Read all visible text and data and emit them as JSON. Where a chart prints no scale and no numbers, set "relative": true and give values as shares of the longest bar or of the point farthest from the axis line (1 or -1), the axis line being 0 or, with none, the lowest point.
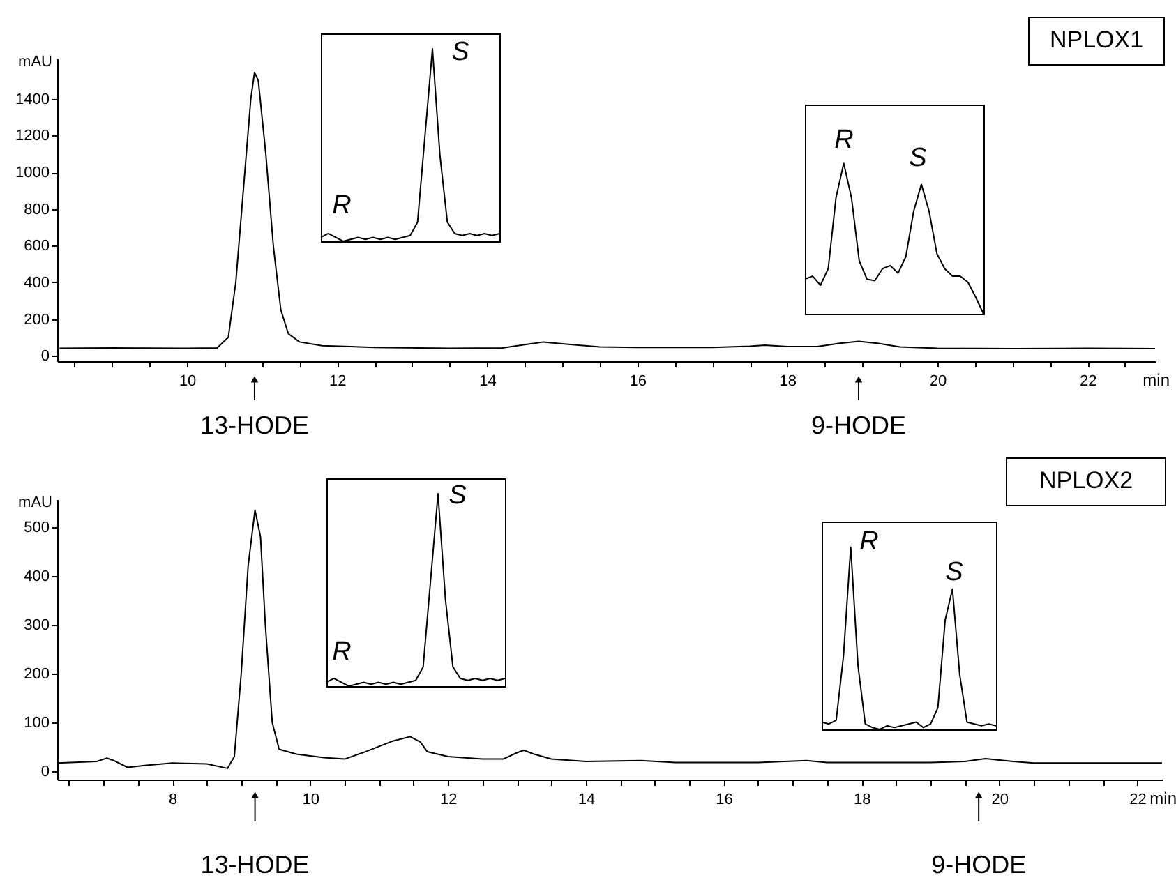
{
  "chart_data": [
    {
      "type": "line",
      "title": "NPLOX1",
      "xlabel": "min",
      "ylabel": "mAU",
      "xlim": [
        8.27,
        22.9
      ],
      "ylim": [
        -30,
        1620
      ],
      "xticks": [
        {
          "value": 8.5,
          "label": null
        },
        {
          "value": 9,
          "label": null
        },
        {
          "value": 9.5,
          "label": null
        },
        10,
        {
          "value": 10.5,
          "label": null
        },
        {
          "value": 11,
          "label": null
        },
        {
          "value": 11.5,
          "label": null
        },
        12,
        {
          "value": 12.5,
          "label": null
        },
        {
          "value": 13,
          "label": null
        },
        {
          "value": 13.5,
          "label": null
        },
        14,
        {
          "value": 14.5,
          "label": null
        },
        {
          "value": 15,
          "label": null
        },
        {
          "value": 15.5,
          "label": null
        },
        16,
        {
          "value": 16.5,
          "label": null
        },
        {
          "value": 17,
          "label": null
        },
        {
          "value": 17.5,
          "label": null
        },
        18,
        {
          "value": 18.5,
          "label": null
        },
        {
          "value": 19,
          "label": null
        },
        {
          "value": 19.5,
          "label": null
        },
        20,
        {
          "value": 20.5,
          "label": null
        },
        {
          "value": 21,
          "label": null
        },
        {
          "value": 21.5,
          "label": null
        },
        22,
        {
          "value": 22.5,
          "label": null
        }
      ],
      "yticks": [
        0,
        200,
        400,
        600,
        800,
        1000,
        1200,
        1400
      ],
      "x": [
        8.3,
        9,
        10,
        10.4,
        10.55,
        10.65,
        10.75,
        10.85,
        10.9,
        10.95,
        11.05,
        11.15,
        11.25,
        11.35,
        11.5,
        11.8,
        12.5,
        13.5,
        14.2,
        14.5,
        14.75,
        15,
        15.5,
        16,
        17,
        17.5,
        17.7,
        18,
        18.4,
        18.7,
        18.95,
        19.2,
        19.5,
        20,
        21,
        22,
        22.9
      ],
      "series": [
        {
          "color": "#000000",
          "values": [
            40,
            42,
            40,
            42,
            100,
            400,
            900,
            1400,
            1545,
            1500,
            1100,
            600,
            250,
            120,
            75,
            55,
            45,
            40,
            42,
            60,
            75,
            65,
            48,
            45,
            45,
            52,
            57,
            50,
            50,
            68,
            78,
            68,
            48,
            40,
            38,
            40,
            38
          ]
        }
      ],
      "annotations": [
        {
          "text": "13-HODE",
          "x": 10.9
        },
        {
          "text": "9-HODE",
          "x": 18.95
        }
      ]
    },
    {
      "type": "line",
      "relative": true,
      "categories": [
        null,
        null,
        null,
        null,
        null,
        null,
        null,
        null,
        null,
        null,
        null,
        null,
        null,
        null,
        null,
        null,
        null,
        null,
        null,
        null,
        null,
        null,
        null,
        null,
        null
      ],
      "series": [
        {
          "color": "#000000",
          "values": [
            0.02,
            0.04,
            0.02,
            0,
            0.01,
            0.02,
            0.01,
            0.02,
            0.01,
            0.02,
            0.01,
            0.02,
            0.03,
            0.1,
            0.55,
            1.0,
            0.45,
            0.1,
            0.04,
            0.03,
            0.04,
            0.03,
            0.04,
            0.03,
            0.04
          ]
        }
      ],
      "annotations": [
        "R",
        "S"
      ]
    },
    {
      "type": "line",
      "relative": true,
      "categories": [
        null,
        null,
        null,
        null,
        null,
        null,
        null,
        null,
        null,
        null,
        null,
        null,
        null,
        null,
        null,
        null,
        null,
        null,
        null,
        null,
        null,
        null,
        null,
        null
      ],
      "series": [
        {
          "color": "#000000",
          "values": [
            0.23,
            0.25,
            0.19,
            0.3,
            0.77,
            1.0,
            0.77,
            0.35,
            0.23,
            0.22,
            0.3,
            0.32,
            0.27,
            0.38,
            0.68,
            0.86,
            0.68,
            0.4,
            0.3,
            0.25,
            0.25,
            0.21,
            0.11,
            0
          ]
        }
      ],
      "annotations": [
        "R",
        "S"
      ]
    },
    {
      "type": "line",
      "title": "NPLOX2",
      "xlabel": "min",
      "ylabel": "mAU",
      "xlim": [
        6.33,
        22.36
      ],
      "ylim": [
        -17,
        557
      ],
      "xticks": [
        {
          "value": 6.5,
          "label": null
        },
        {
          "value": 7,
          "label": null
        },
        {
          "value": 7.5,
          "label": null
        },
        8,
        {
          "value": 8.5,
          "label": null
        },
        {
          "value": 9,
          "label": null
        },
        {
          "value": 9.5,
          "label": null
        },
        10,
        {
          "value": 10.5,
          "label": null
        },
        {
          "value": 11,
          "label": null
        },
        {
          "value": 11.5,
          "label": null
        },
        12,
        {
          "value": 12.5,
          "label": null
        },
        {
          "value": 13,
          "label": null
        },
        {
          "value": 13.5,
          "label": null
        },
        14,
        {
          "value": 14.5,
          "label": null
        },
        {
          "value": 15,
          "label": null
        },
        {
          "value": 15.5,
          "label": null
        },
        16,
        {
          "value": 16.5,
          "label": null
        },
        {
          "value": 17,
          "label": null
        },
        {
          "value": 17.5,
          "label": null
        },
        18,
        {
          "value": 18.5,
          "label": null
        },
        {
          "value": 19,
          "label": null
        },
        {
          "value": 19.5,
          "label": null
        },
        20,
        {
          "value": 20.5,
          "label": null
        },
        {
          "value": 21,
          "label": null
        },
        {
          "value": 21.5,
          "label": null
        },
        22
      ],
      "yticks": [
        0,
        100,
        200,
        300,
        400,
        500
      ],
      "x": [
        6.33,
        6.9,
        7.05,
        7.15,
        7.35,
        7.6,
        8,
        8.5,
        8.8,
        8.9,
        9.0,
        9.1,
        9.2,
        9.28,
        9.35,
        9.45,
        9.55,
        9.8,
        10.2,
        10.5,
        10.8,
        11.2,
        11.45,
        11.6,
        11.7,
        12,
        12.5,
        12.8,
        13.0,
        13.1,
        13.25,
        13.5,
        14,
        14.8,
        15.3,
        16.5,
        17.2,
        17.5,
        19,
        19.5,
        19.7,
        19.8,
        20.2,
        20.5,
        22.36
      ],
      "series": [
        {
          "color": "#000000",
          "values": [
            17,
            20,
            27,
            22,
            8,
            12,
            17,
            15,
            6,
            30,
            200,
            420,
            535,
            480,
            300,
            100,
            45,
            35,
            28,
            25,
            40,
            62,
            71,
            60,
            40,
            30,
            25,
            25,
            38,
            43,
            35,
            25,
            20,
            22,
            18,
            18,
            22,
            18,
            18,
            20,
            24,
            26,
            20,
            17,
            17
          ]
        }
      ],
      "annotations": [
        {
          "text": "13-HODE",
          "x": 9.2
        },
        {
          "text": "9-HODE",
          "x": 19.7
        }
      ]
    },
    {
      "type": "line",
      "relative": true,
      "categories": [
        null,
        null,
        null,
        null,
        null,
        null,
        null,
        null,
        null,
        null,
        null,
        null,
        null,
        null,
        null,
        null,
        null,
        null,
        null,
        null,
        null,
        null,
        null,
        null,
        null
      ],
      "series": [
        {
          "color": "#000000",
          "values": [
            0.02,
            0.04,
            0.02,
            0,
            0.01,
            0.02,
            0.01,
            0.02,
            0.01,
            0.02,
            0.01,
            0.02,
            0.03,
            0.1,
            0.55,
            1.0,
            0.45,
            0.1,
            0.04,
            0.03,
            0.04,
            0.03,
            0.04,
            0.03,
            0.04
          ]
        }
      ],
      "annotations": [
        "R",
        "S"
      ]
    },
    {
      "type": "line",
      "relative": true,
      "categories": [
        null,
        null,
        null,
        null,
        null,
        null,
        null,
        null,
        null,
        null,
        null,
        null,
        null,
        null,
        null,
        null,
        null,
        null,
        null,
        null,
        null,
        null,
        null,
        null,
        null
      ],
      "series": [
        {
          "color": "#000000",
          "values": [
            0.04,
            0.03,
            0.05,
            0.4,
            1.0,
            0.35,
            0.03,
            0.01,
            0,
            0.02,
            0.01,
            0.02,
            0.03,
            0.04,
            0.01,
            0.03,
            0.12,
            0.6,
            0.77,
            0.3,
            0.04,
            0.03,
            0.02,
            0.03,
            0.02
          ]
        }
      ],
      "annotations": [
        "R",
        "S"
      ]
    }
  ]
}
